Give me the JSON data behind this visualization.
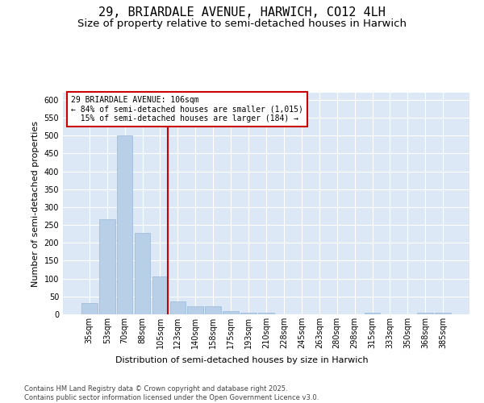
{
  "title": "29, BRIARDALE AVENUE, HARWICH, CO12 4LH",
  "subtitle": "Size of property relative to semi-detached houses in Harwich",
  "xlabel": "Distribution of semi-detached houses by size in Harwich",
  "ylabel": "Number of semi-detached properties",
  "categories": [
    "35sqm",
    "53sqm",
    "70sqm",
    "88sqm",
    "105sqm",
    "123sqm",
    "140sqm",
    "158sqm",
    "175sqm",
    "193sqm",
    "210sqm",
    "228sqm",
    "245sqm",
    "263sqm",
    "280sqm",
    "298sqm",
    "315sqm",
    "333sqm",
    "350sqm",
    "368sqm",
    "385sqm"
  ],
  "values": [
    32,
    265,
    500,
    228,
    107,
    35,
    22,
    22,
    10,
    5,
    5,
    1,
    1,
    1,
    1,
    1,
    5,
    1,
    1,
    5,
    5
  ],
  "bar_color": "#b8cfe8",
  "bar_edge_color": "#99b8d8",
  "property_line_color": "#cc0000",
  "property_line_x": 4.42,
  "annotation_text": "29 BRIARDALE AVENUE: 106sqm\n← 84% of semi-detached houses are smaller (1,015)\n  15% of semi-detached houses are larger (184) →",
  "annotation_box_edgecolor": "#cc0000",
  "background_color": "#dce8f5",
  "grid_color": "#ffffff",
  "ylim": [
    0,
    620
  ],
  "yticks": [
    0,
    50,
    100,
    150,
    200,
    250,
    300,
    350,
    400,
    450,
    500,
    550,
    600
  ],
  "footer": "Contains HM Land Registry data © Crown copyright and database right 2025.\nContains public sector information licensed under the Open Government Licence v3.0.",
  "title_fontsize": 11,
  "subtitle_fontsize": 9.5,
  "axis_label_fontsize": 8,
  "tick_fontsize": 7,
  "annotation_fontsize": 7,
  "footer_fontsize": 6
}
